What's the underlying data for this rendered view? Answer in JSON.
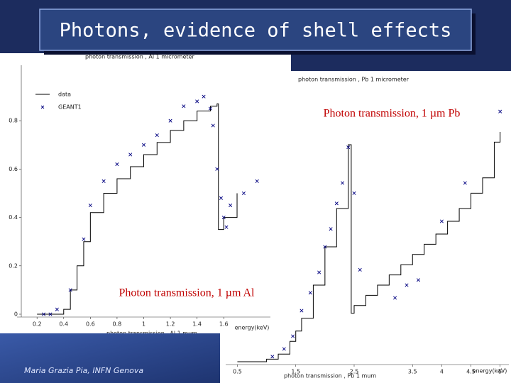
{
  "slide": {
    "title": "Photons, evidence of shell effects",
    "footer": "Maria Grazia Pia, INFN Genova"
  },
  "chart_data": [
    {
      "type": "line",
      "title": "photon transmission , Al 1 micrometer",
      "xlabel": "photon transmission , Al 1 mum",
      "unit_label": "energy(keV)",
      "annotation": "Photon transmission, 1 µm Al",
      "xlim": [
        0.05,
        1.95
      ],
      "ylim": [
        0,
        1
      ],
      "xticks": [
        0.2,
        0.4,
        0.6,
        0.8,
        1,
        1.2,
        1.4,
        1.6
      ],
      "yticks": [
        0,
        0.2,
        0.4,
        0.6,
        0.8
      ],
      "legend": "upper left",
      "series": [
        {
          "name": "data",
          "style": "step",
          "color": "#000000",
          "x": [
            0.2,
            0.3,
            0.4,
            0.45,
            0.5,
            0.55,
            0.6,
            0.7,
            0.8,
            0.9,
            1.0,
            1.1,
            1.2,
            1.3,
            1.4,
            1.5,
            1.55,
            1.56,
            1.6,
            1.7
          ],
          "values": [
            0,
            0,
            0.02,
            0.1,
            0.2,
            0.3,
            0.42,
            0.5,
            0.56,
            0.61,
            0.66,
            0.71,
            0.76,
            0.8,
            0.84,
            0.86,
            0.87,
            0.35,
            0.4,
            0.5
          ]
        },
        {
          "name": "GEANT1",
          "style": "markers",
          "color": "#000080",
          "x": [
            0.25,
            0.3,
            0.35,
            0.45,
            0.55,
            0.6,
            0.7,
            0.8,
            0.9,
            1.0,
            1.1,
            1.2,
            1.3,
            1.4,
            1.45,
            1.5,
            1.52,
            1.55,
            1.58,
            1.6,
            1.62,
            1.65,
            1.75,
            1.85
          ],
          "values": [
            0,
            0,
            0.02,
            0.1,
            0.31,
            0.45,
            0.55,
            0.62,
            0.66,
            0.7,
            0.74,
            0.8,
            0.86,
            0.88,
            0.9,
            0.85,
            0.78,
            0.6,
            0.48,
            0.4,
            0.36,
            0.45,
            0.5,
            0.55
          ]
        }
      ]
    },
    {
      "type": "line",
      "title": "photon transmission , Pb 1 micrometer",
      "xlabel": "photon transmission , Pb 1 mum",
      "unit_label": "energy(keV)",
      "annotation": "Photon transmission, 1 µm Pb",
      "xlim": [
        0.3,
        5.15
      ],
      "ylim": [
        0,
        1
      ],
      "xticks": [
        0.5,
        1.5,
        2.5,
        3.5,
        4,
        4.5,
        5
      ],
      "series": [
        {
          "style": "step",
          "color": "#000000",
          "x": [
            0.5,
            1.0,
            1.2,
            1.4,
            1.5,
            1.6,
            1.8,
            2.0,
            2.2,
            2.4,
            2.45,
            2.5,
            2.7,
            2.9,
            3.1,
            3.3,
            3.5,
            3.7,
            3.9,
            4.1,
            4.3,
            4.5,
            4.7,
            4.9,
            5.0
          ],
          "values": [
            0,
            0.01,
            0.03,
            0.08,
            0.12,
            0.17,
            0.3,
            0.45,
            0.6,
            0.85,
            0.19,
            0.22,
            0.26,
            0.3,
            0.34,
            0.38,
            0.42,
            0.46,
            0.5,
            0.55,
            0.6,
            0.66,
            0.72,
            0.86,
            0.9
          ]
        },
        {
          "style": "markers",
          "color": "#000080",
          "x": [
            1.1,
            1.3,
            1.45,
            1.6,
            1.75,
            1.9,
            2.0,
            2.1,
            2.2,
            2.3,
            2.4,
            2.5,
            2.6,
            3.2,
            3.4,
            3.6,
            4.0,
            4.4,
            5.0
          ],
          "values": [
            0.02,
            0.05,
            0.1,
            0.2,
            0.27,
            0.35,
            0.45,
            0.52,
            0.62,
            0.7,
            0.84,
            0.66,
            0.36,
            0.25,
            0.3,
            0.32,
            0.55,
            0.7,
            0.98
          ]
        }
      ]
    }
  ]
}
